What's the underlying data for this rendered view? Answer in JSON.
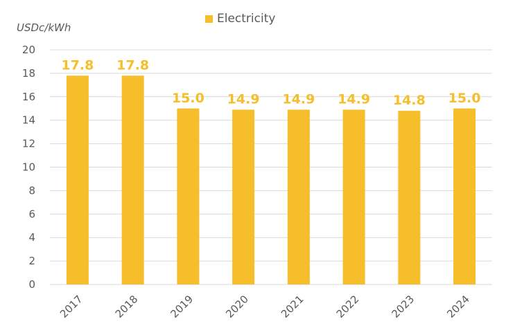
{
  "chart_data": {
    "type": "bar",
    "title": "",
    "xlabel": "",
    "ylabel": "USDc/kWh",
    "categories": [
      "2017",
      "2018",
      "2019",
      "2020",
      "2021",
      "2022",
      "2023",
      "2024"
    ],
    "series": [
      {
        "name": "Electricity",
        "values": [
          17.8,
          17.8,
          15.0,
          14.9,
          14.9,
          14.9,
          14.8,
          15.0
        ]
      }
    ],
    "data_labels": [
      "17.8",
      "17.8",
      "15.0",
      "14.9",
      "14.9",
      "14.9",
      "14.8",
      "15.0"
    ],
    "ylim": [
      0,
      20
    ],
    "yticks": [
      "0",
      "2",
      "4",
      "6",
      "8",
      "10",
      "12",
      "14",
      "16",
      "18",
      "20"
    ],
    "grid": true,
    "legend_position": "top-center"
  },
  "colors": {
    "bar": "#F5BE2A",
    "label": "#F5BE2A",
    "grid": "#D9D9D9",
    "text": "#595959"
  }
}
